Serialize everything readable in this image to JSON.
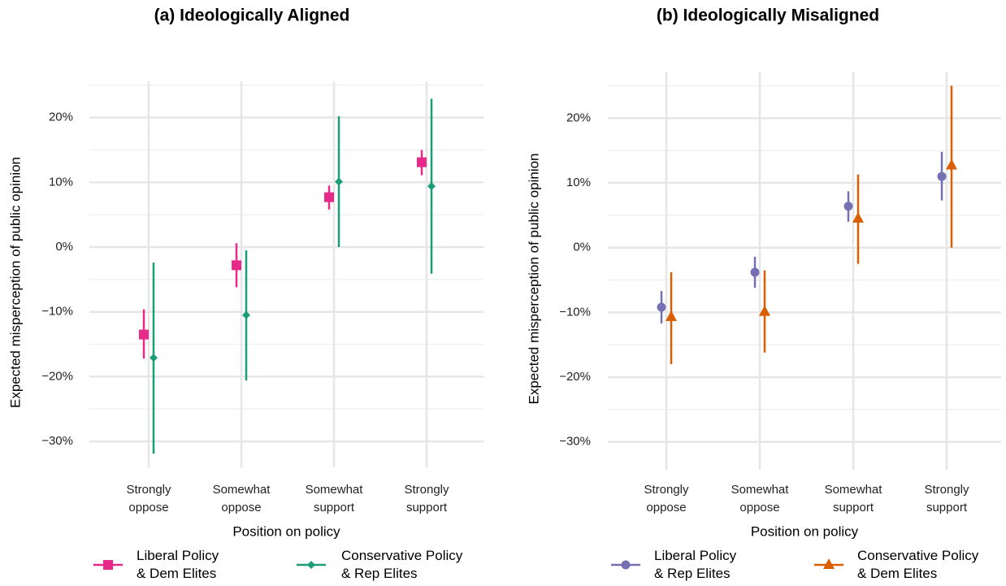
{
  "chart_data": [
    {
      "type": "pointrange",
      "title": "(a) Ideologically Aligned",
      "x_label": "Position on policy",
      "y_label": "Expected misperception of public opinion",
      "categories": [
        "Strongly oppose",
        "Somewhat oppose",
        "Somewhat support",
        "Strongly support"
      ],
      "ylim": [
        -34,
        25.6
      ],
      "yticks": [
        {
          "value": -30,
          "label": "−30%"
        },
        {
          "value": -20,
          "label": "−20%"
        },
        {
          "value": -10,
          "label": "−10%"
        },
        {
          "value": 0,
          "label": "0%"
        },
        {
          "value": 10,
          "label": "10%"
        },
        {
          "value": 20,
          "label": "20%"
        }
      ],
      "grid": true,
      "series": [
        {
          "name": "Liberal Policy & Dem Elites",
          "color": "#e7298a",
          "marker": "square",
          "values": [
            -13.5,
            -2.8,
            7.7,
            13.1
          ],
          "lower": [
            -17.2,
            -6.2,
            5.8,
            11.1
          ],
          "upper": [
            -9.6,
            0.6,
            9.5,
            15
          ]
        },
        {
          "name": "Conservative Policy & Rep Elites",
          "color": "#1b9e77",
          "marker": "diamond",
          "values": [
            -17.1,
            -10.5,
            10.1,
            9.4
          ],
          "lower": [
            -31.9,
            -20.6,
            0,
            -4.1
          ],
          "upper": [
            -2.4,
            -0.5,
            20.2,
            22.9
          ]
        }
      ]
    },
    {
      "type": "pointrange",
      "title": "(b) Ideologically Misaligned",
      "x_label": "Position on policy",
      "y_label": "Expected misperception of public opinion",
      "categories": [
        "Strongly oppose",
        "Somewhat oppose",
        "Somewhat support",
        "Strongly support"
      ],
      "ylim": [
        -34.3,
        27.2
      ],
      "yticks": [
        {
          "value": -30,
          "label": "−30%"
        },
        {
          "value": -20,
          "label": "−20%"
        },
        {
          "value": -10,
          "label": "−10%"
        },
        {
          "value": 0,
          "label": "0%"
        },
        {
          "value": 10,
          "label": "10%"
        },
        {
          "value": 20,
          "label": "20%"
        }
      ],
      "grid": true,
      "series": [
        {
          "name": "Liberal Policy & Rep Elites",
          "color": "#7570b3",
          "marker": "circle",
          "values": [
            -9.2,
            -3.8,
            6.4,
            11.0
          ],
          "lower": [
            -11.7,
            -6.2,
            4.0,
            7.3
          ],
          "upper": [
            -6.7,
            -1.4,
            8.7,
            14.8
          ]
        },
        {
          "name": "Conservative Policy & Dem Elites",
          "color": "#d95f02",
          "marker": "triangle",
          "values": [
            -10.7,
            -9.9,
            4.5,
            12.7
          ],
          "lower": [
            -18.0,
            -16.2,
            -2.5,
            0
          ],
          "upper": [
            -3.8,
            -3.5,
            11.3,
            25
          ]
        }
      ]
    }
  ]
}
